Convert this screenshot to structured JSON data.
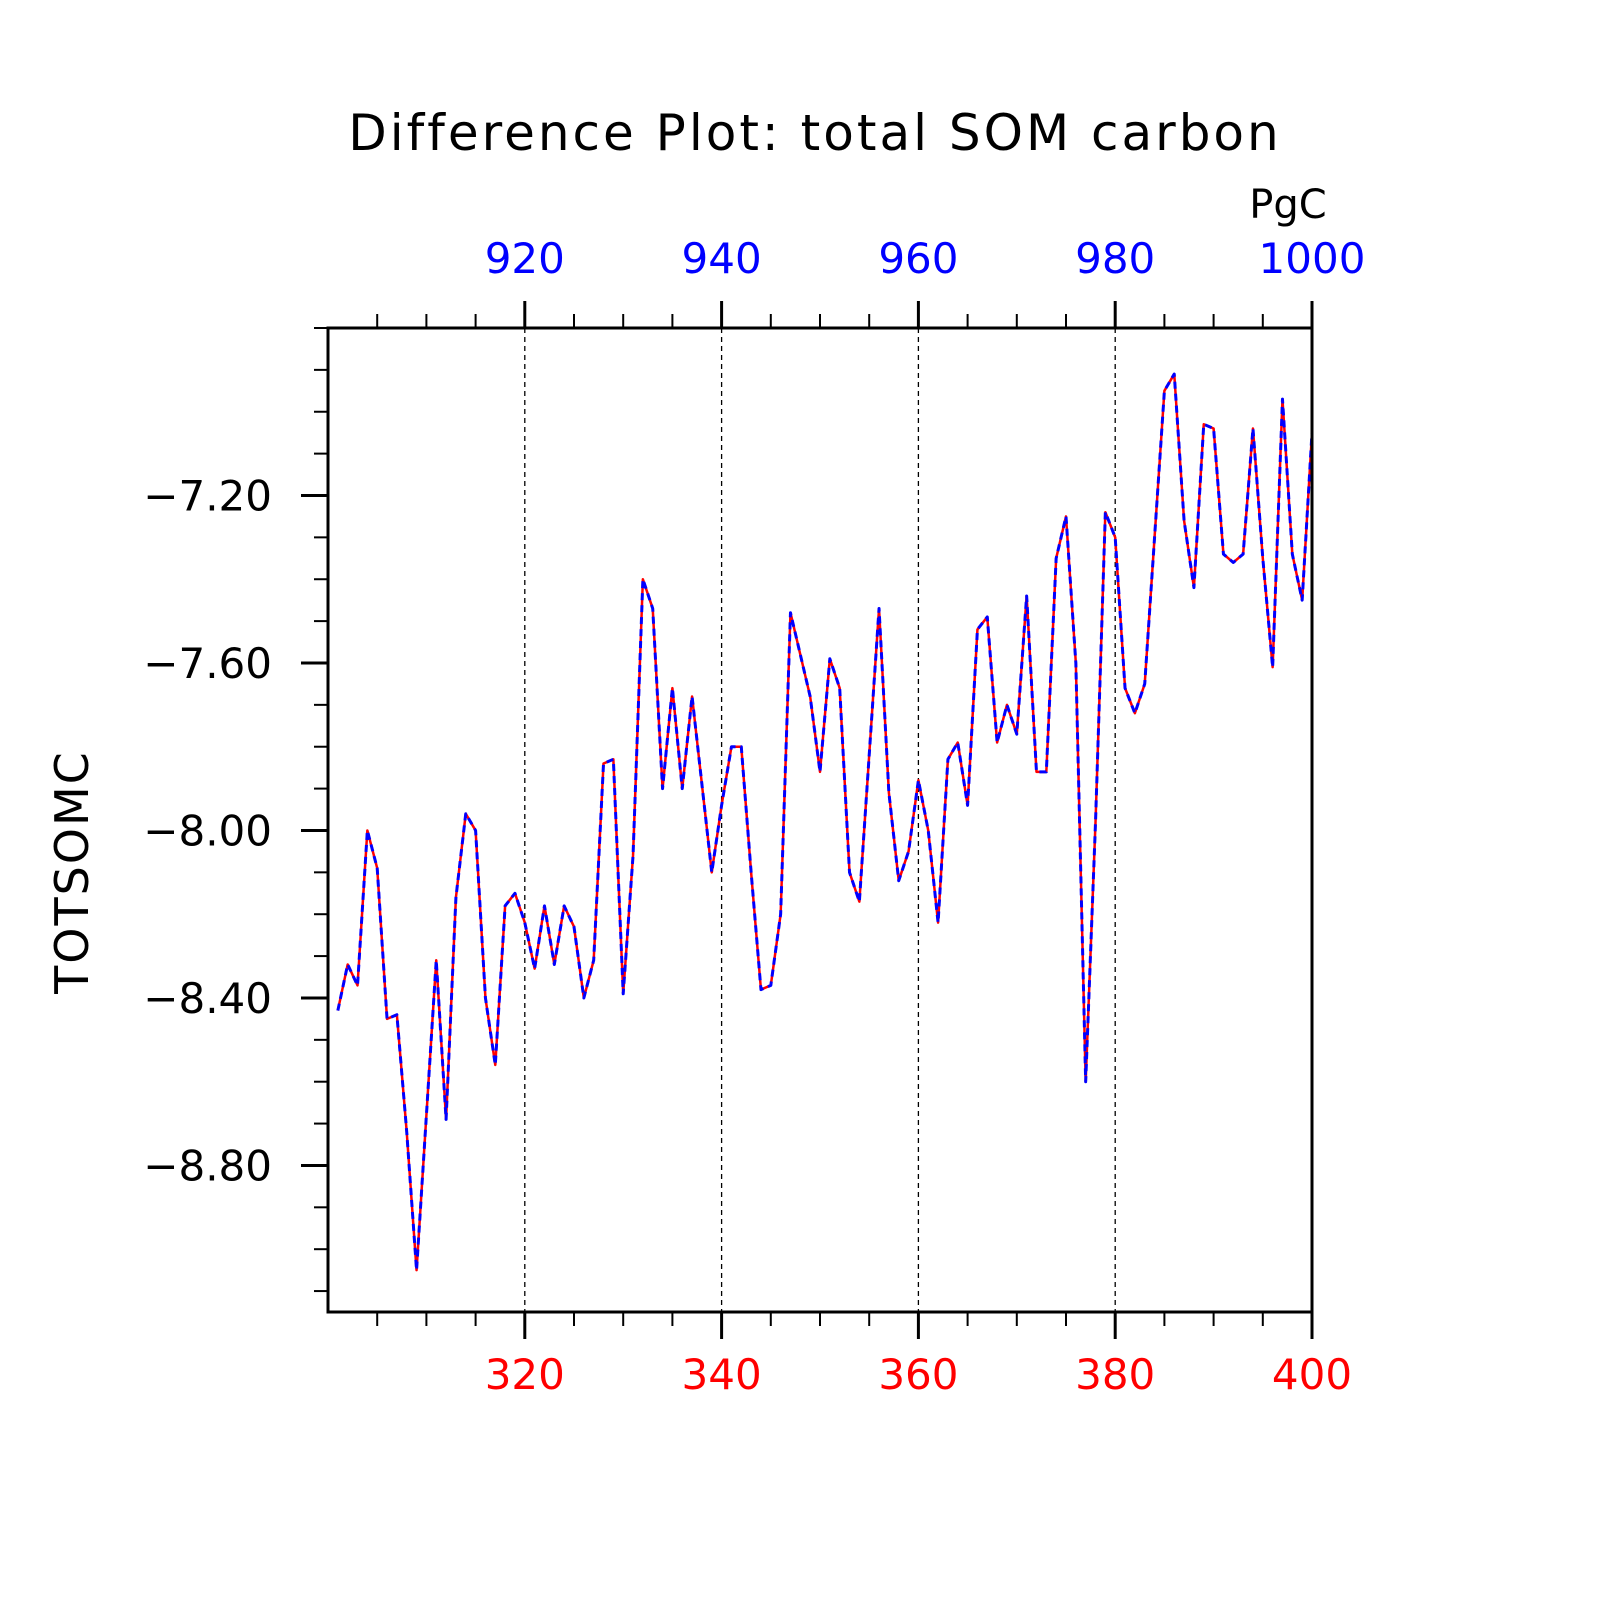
{
  "chart_data": {
    "type": "line",
    "title": "Difference Plot: total SOM carbon",
    "units": "PgC",
    "ylabel": "TOTSOMC",
    "xlabel": "",
    "x_bottom": {
      "range": [
        301,
        400
      ],
      "ticks": [
        "320",
        "340",
        "360",
        "380",
        "400"
      ],
      "color": "#ff0000"
    },
    "x_top": {
      "range": [
        901,
        1000
      ],
      "ticks": [
        "920",
        "940",
        "960",
        "980",
        "1000"
      ],
      "color": "#0000ff"
    },
    "y_ticks": [
      "−7.20",
      "−7.60",
      "−8.00",
      "−8.40",
      "−8.80"
    ],
    "ylim": [
      -9.15,
      -6.8
    ],
    "grid": "dashed vertical at major x ticks",
    "series": [
      {
        "line_color": "#ff0000",
        "dash_color": "#0000ff",
        "x_start": 301,
        "values": [
          -8.43,
          -8.32,
          -8.37,
          -8.0,
          -8.09,
          -8.45,
          -8.44,
          -8.72,
          -9.05,
          -8.68,
          -8.31,
          -8.69,
          -8.16,
          -7.96,
          -8.0,
          -8.4,
          -8.56,
          -8.18,
          -8.15,
          -8.22,
          -8.33,
          -8.18,
          -8.32,
          -8.18,
          -8.23,
          -8.4,
          -8.31,
          -7.84,
          -7.83,
          -8.39,
          -8.06,
          -7.4,
          -7.47,
          -7.9,
          -7.66,
          -7.9,
          -7.68,
          -7.89,
          -8.1,
          -7.94,
          -7.8,
          -7.8,
          -8.1,
          -8.38,
          -8.37,
          -8.2,
          -7.48,
          -7.58,
          -7.68,
          -7.86,
          -7.59,
          -7.66,
          -8.1,
          -8.17,
          -7.82,
          -7.47,
          -7.91,
          -8.12,
          -8.05,
          -7.88,
          -8.0,
          -8.22,
          -7.83,
          -7.79,
          -7.94,
          -7.52,
          -7.49,
          -7.79,
          -7.7,
          -7.77,
          -7.44,
          -7.86,
          -7.86,
          -7.35,
          -7.25,
          -7.6,
          -8.6,
          -7.98,
          -7.24,
          -7.3,
          -7.66,
          -7.72,
          -7.65,
          -7.3,
          -6.95,
          -6.91,
          -7.26,
          -7.42,
          -7.03,
          -7.04,
          -7.34,
          -7.36,
          -7.34,
          -7.04,
          -7.35,
          -7.61,
          -6.97,
          -7.34,
          -7.45,
          -7.05
        ]
      }
    ]
  }
}
